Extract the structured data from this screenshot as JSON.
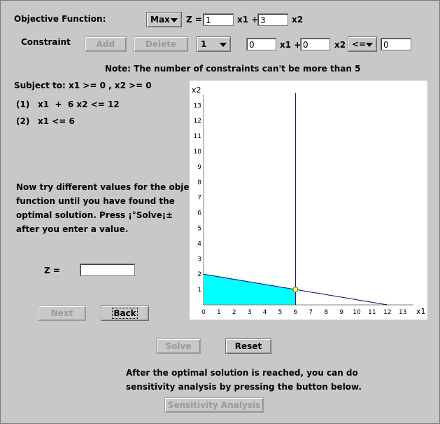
{
  "objective": {
    "label": "Objective Function:",
    "type_value": "Max",
    "z_eq": "Z =",
    "coef1": "1",
    "x1_plus": "x1 +",
    "coef2": "3",
    "x2": "x2"
  },
  "constraint_editor": {
    "label": "Constraint",
    "add": "Add",
    "delete": "Delete",
    "index_value": "1",
    "coef1": "0",
    "x1_plus": "x1 +",
    "coef2": "0",
    "x2": "x2",
    "relation": "<=",
    "rhs": "0"
  },
  "note": "Note: The number of constraints can't be more than 5",
  "constraints": {
    "subject_to": "Subject to: x1 >= 0 , x2 >= 0",
    "items": [
      {
        "num": "(1)",
        "expr": "x1  +  6 x2 <= 12"
      },
      {
        "num": "(2)",
        "expr": "x1 <= 6"
      }
    ]
  },
  "instructions": [
    "Now try different values for the objective",
    "function until you have found the",
    "optimal solution. Press ¡°Solve¡±",
    "after you enter a value."
  ],
  "z_input": {
    "label": "Z =",
    "value": ""
  },
  "nav": {
    "next": "Next",
    "back": "Back"
  },
  "actions": {
    "solve": "Solve",
    "reset": "Reset"
  },
  "footer": [
    "After the optimal solution is reached, you can do",
    "sensitivity analysis by pressing the button below."
  ],
  "sensitivity_button": "Sensitivity Analysis",
  "chart_data": {
    "type": "line",
    "xlabel": "x1",
    "ylabel": "x2",
    "xlim": [
      0,
      13
    ],
    "ylim": [
      0,
      13
    ],
    "x_ticks": [
      "0",
      "1",
      "2",
      "3",
      "4",
      "5",
      "6",
      "7",
      "8",
      "9",
      "10",
      "11",
      "12",
      "13"
    ],
    "y_ticks": [
      "1",
      "2",
      "3",
      "4",
      "5",
      "6",
      "7",
      "8",
      "9",
      "10",
      "11",
      "12",
      "13"
    ],
    "lines": [
      {
        "name": "(1)",
        "points": [
          [
            0,
            2
          ],
          [
            12,
            0
          ]
        ]
      },
      {
        "name": "(2)",
        "points": [
          [
            6,
            0
          ],
          [
            6,
            13.8
          ]
        ]
      }
    ],
    "feasible_region": [
      [
        0,
        0
      ],
      [
        0,
        2
      ],
      [
        6,
        1
      ],
      [
        6,
        0
      ]
    ],
    "feasible_color": "#00ffff",
    "line_color": "#000080",
    "point": [
      6,
      1
    ],
    "point_color": "#ffff66"
  }
}
